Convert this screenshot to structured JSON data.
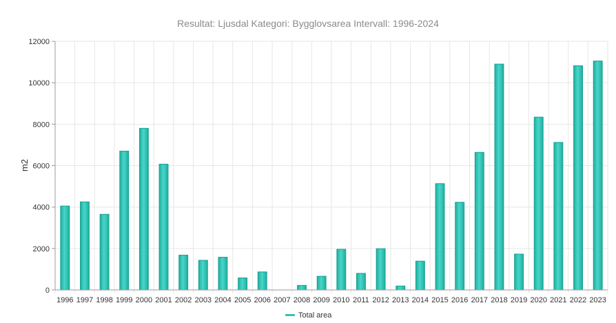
{
  "chart_data": {
    "type": "bar",
    "title": "Resultat: Ljusdal Kategori: Bygglovsarea Intervall: 1996-2024",
    "ylabel": "m2",
    "xlabel": "",
    "ylim": [
      0,
      12000
    ],
    "yticks": [
      0,
      2000,
      4000,
      6000,
      8000,
      10000,
      12000
    ],
    "grid": true,
    "legend_position": "bottom",
    "categories": [
      "1996",
      "1997",
      "1998",
      "1999",
      "2000",
      "2001",
      "2002",
      "2003",
      "2004",
      "2005",
      "2006",
      "2007",
      "2008",
      "2009",
      "2010",
      "2011",
      "2012",
      "2013",
      "2014",
      "2015",
      "2016",
      "2017",
      "2018",
      "2019",
      "2020",
      "2021",
      "2022",
      "2023"
    ],
    "series": [
      {
        "name": "Total area",
        "color": "#2ec4b6",
        "values": [
          4050,
          4250,
          3650,
          6700,
          7800,
          6070,
          1680,
          1430,
          1580,
          580,
          870,
          0,
          220,
          660,
          1960,
          800,
          1990,
          190,
          1390,
          5130,
          4230,
          6640,
          10900,
          1730,
          8340,
          7120,
          10820,
          11050
        ]
      }
    ]
  }
}
